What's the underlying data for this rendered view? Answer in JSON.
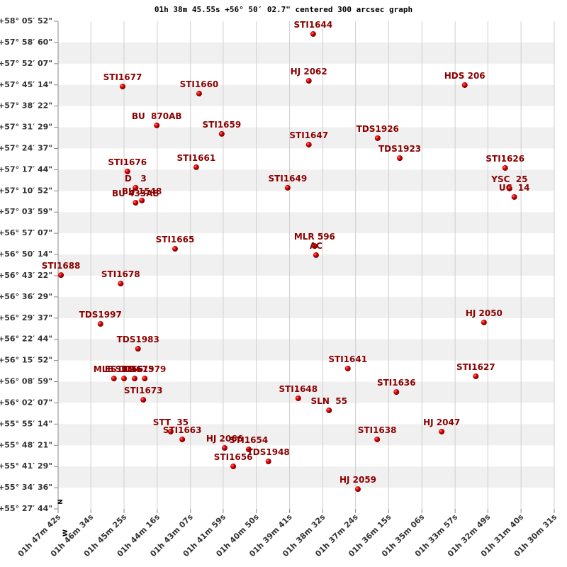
{
  "chart_data": {
    "type": "scatter",
    "title": "01h 38m 45.55s +56° 50′ 02.7\" centered 300 arcsec graph",
    "compass_north": "N",
    "compass_west": "W",
    "color": "#8b0000",
    "grid": true,
    "xlim": [
      6462,
      5431
    ],
    "xticks": [
      {
        "value": 6462,
        "label": "01h 47m 42s"
      },
      {
        "value": 6394,
        "label": "01h 46m 34s"
      },
      {
        "value": 6325,
        "label": "01h 45m 25s"
      },
      {
        "value": 6256,
        "label": "01h 44m 16s"
      },
      {
        "value": 6187,
        "label": "01h 43m 07s"
      },
      {
        "value": 6119,
        "label": "01h 41m 59s"
      },
      {
        "value": 6050,
        "label": "01h 40m 50s"
      },
      {
        "value": 5981,
        "label": "01h 39m 41s"
      },
      {
        "value": 5912,
        "label": "01h 38m 32s"
      },
      {
        "value": 5844,
        "label": "01h 37m 24s"
      },
      {
        "value": 5775,
        "label": "01h 36m 15s"
      },
      {
        "value": 5706,
        "label": "01h 35m 06s"
      },
      {
        "value": 5637,
        "label": "01h 33m 57s"
      },
      {
        "value": 5569,
        "label": "01h 32m 49s"
      },
      {
        "value": 5500,
        "label": "01h 31m 40s"
      },
      {
        "value": 5431,
        "label": "01h 30m 31s"
      }
    ],
    "ylim": [
      55.4624,
      58.0978
    ],
    "yticks": [
      {
        "value": 58.0978,
        "label": "+58° 05′ 52\""
      },
      {
        "value": 57.9832,
        "label": "+57° 58′ 60\""
      },
      {
        "value": 57.8686,
        "label": "+57° 52′ 07\""
      },
      {
        "value": 57.754,
        "label": "+57° 45′ 14\""
      },
      {
        "value": 57.6395,
        "label": "+57° 38′ 22\""
      },
      {
        "value": 57.5249,
        "label": "+57° 31′ 29\""
      },
      {
        "value": 57.4103,
        "label": "+57° 24′ 37\""
      },
      {
        "value": 57.2957,
        "label": "+57° 17′ 44\""
      },
      {
        "value": 57.1811,
        "label": "+57° 10′ 52\""
      },
      {
        "value": 57.0665,
        "label": "+57° 03′ 59\""
      },
      {
        "value": 56.952,
        "label": "+56° 57′ 07\""
      },
      {
        "value": 56.8374,
        "label": "+56° 50′ 14\""
      },
      {
        "value": 56.7228,
        "label": "+56° 43′ 22\""
      },
      {
        "value": 56.6082,
        "label": "+56° 36′ 29\""
      },
      {
        "value": 56.4936,
        "label": "+56° 29′ 37\""
      },
      {
        "value": 56.379,
        "label": "+56° 22′ 44\""
      },
      {
        "value": 56.2645,
        "label": "+56° 15′ 52\""
      },
      {
        "value": 56.1499,
        "label": "+56° 08′ 59\""
      },
      {
        "value": 56.0353,
        "label": "+56° 02′ 07\""
      },
      {
        "value": 55.9207,
        "label": "+55° 55′ 14\""
      },
      {
        "value": 55.8061,
        "label": "+55° 48′ 21\""
      },
      {
        "value": 55.6915,
        "label": "+55° 41′ 29\""
      },
      {
        "value": 55.577,
        "label": "+55° 34′ 36\""
      },
      {
        "value": 55.4624,
        "label": "+55° 27′ 44\""
      }
    ],
    "labels": [
      "STI1644",
      "STI1677",
      "HJ 2062",
      "HDS 206",
      "STI1660",
      "BU  870AB",
      "STI1659",
      "STI1647",
      "TDS1926",
      "TDS1923",
      "STI1626",
      "STI1676",
      "STI1661",
      "STI1649",
      "YSC  25",
      "UC  14",
      "D   3",
      "BU 433AB",
      "BU 1548",
      "STI1665",
      "MLR 596",
      "AC",
      "STI1688",
      "STI1678",
      "TDS1997",
      "HJ 2050",
      "TDS1983",
      "STI1641",
      "STI1627",
      "MLB 112",
      "TDS1979",
      "ES 1766",
      "STI1675",
      "STI1673",
      "STI1636",
      "STI1648",
      "SLN  55",
      "STT  35",
      "STI1663",
      "HJ 2047",
      "STI1638",
      "HJ 2066",
      "STI1654",
      "TDS1948",
      "STI1656",
      "HJ 2059"
    ],
    "x": [
      5932,
      6328,
      5941,
      5617,
      6169,
      6257,
      6122,
      5941,
      5798,
      5752,
      5533,
      6318,
      6175,
      5985,
      5524,
      5514,
      6301,
      6301,
      6288,
      6219,
      5929,
      5926,
      6456,
      6332,
      6374,
      5577,
      6296,
      5860,
      5594,
      6346,
      6282,
      6325,
      6303,
      6285,
      5759,
      5963,
      5899,
      6228,
      6204,
      5665,
      5799,
      6116,
      6066,
      6025,
      6098,
      5839
    ],
    "y": [
      58.029,
      57.745,
      57.776,
      57.753,
      57.707,
      57.535,
      57.489,
      57.431,
      57.466,
      57.358,
      57.305,
      57.286,
      57.309,
      57.198,
      57.194,
      57.148,
      57.198,
      57.117,
      57.129,
      56.868,
      56.883,
      56.834,
      56.726,
      56.68,
      56.462,
      56.47,
      56.328,
      56.221,
      56.179,
      56.167,
      56.167,
      56.167,
      56.167,
      56.052,
      56.094,
      56.06,
      55.995,
      55.88,
      55.838,
      55.88,
      55.838,
      55.792,
      55.784,
      55.719,
      55.692,
      55.569
    ]
  }
}
